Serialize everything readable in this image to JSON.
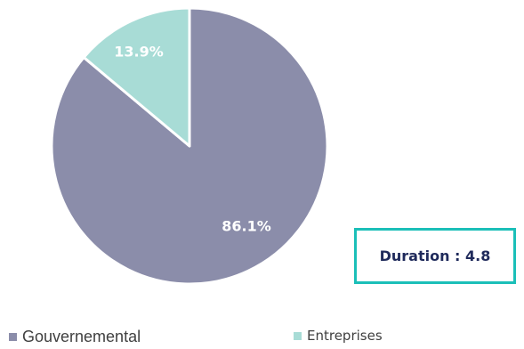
{
  "chart_data": {
    "type": "pie",
    "slices": [
      {
        "name": "Gouvernemental",
        "value": 86.1,
        "label": "86.1%",
        "color": "#8b8daa"
      },
      {
        "name": "Entreprises",
        "value": 13.9,
        "label": "13.9%",
        "color": "#a8dcd6"
      }
    ],
    "legend_position": "bottom"
  },
  "duration": {
    "label": "Duration",
    "separator": " : ",
    "value": "4.8"
  },
  "colors": {
    "accent_border": "#1bbfb8",
    "duration_text": "#1f2a5b"
  }
}
